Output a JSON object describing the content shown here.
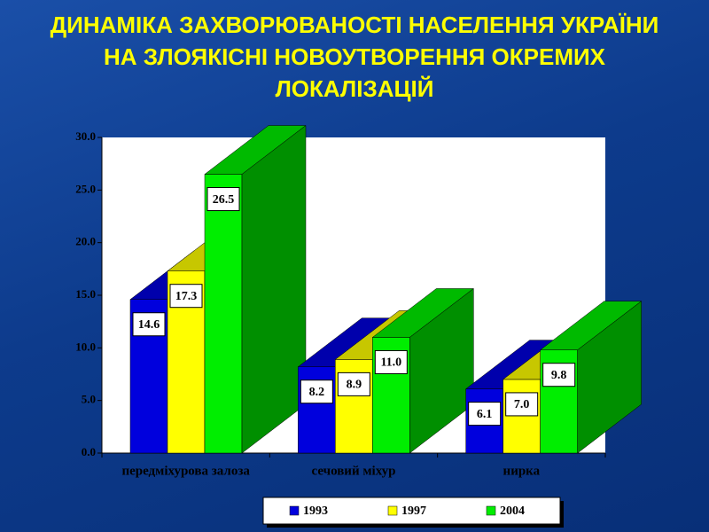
{
  "chart_data": {
    "type": "bar3d",
    "title": "ДИНАМІКА ЗАХВОРЮВАНОСТІ НАСЕЛЕННЯ УКРАЇНИ НА ЗЛОЯКІСНІ НОВОУТВОРЕННЯ ОКРЕМИХ ЛОКАЛІЗАЦІЙ",
    "categories": [
      "передміхурова залоза",
      "сечовий міхур",
      "нирка"
    ],
    "series": [
      {
        "name": "1993",
        "color": "#0000dd",
        "values": [
          14.6,
          8.2,
          6.1
        ],
        "value_labels": [
          "14.6",
          "8.2",
          "6.1"
        ]
      },
      {
        "name": "1997",
        "color": "#ffff00",
        "values": [
          17.3,
          8.9,
          7.0
        ],
        "value_labels": [
          "17.3",
          "8.9",
          "7.0"
        ]
      },
      {
        "name": "2004",
        "color": "#00ee00",
        "values": [
          26.5,
          11.0,
          9.8
        ],
        "value_labels": [
          "26.5",
          "11.0",
          "9.8"
        ]
      }
    ],
    "ylim": [
      0,
      30
    ],
    "yticks": [
      {
        "value": 0,
        "label": "0.0"
      },
      {
        "value": 5,
        "label": "5.0"
      },
      {
        "value": 10,
        "label": "10.0"
      },
      {
        "value": 15,
        "label": "15.0"
      },
      {
        "value": 20,
        "label": "20.0"
      },
      {
        "value": 25,
        "label": "25.0"
      },
      {
        "value": 30,
        "label": "30.0"
      }
    ],
    "legend": "bottom"
  }
}
